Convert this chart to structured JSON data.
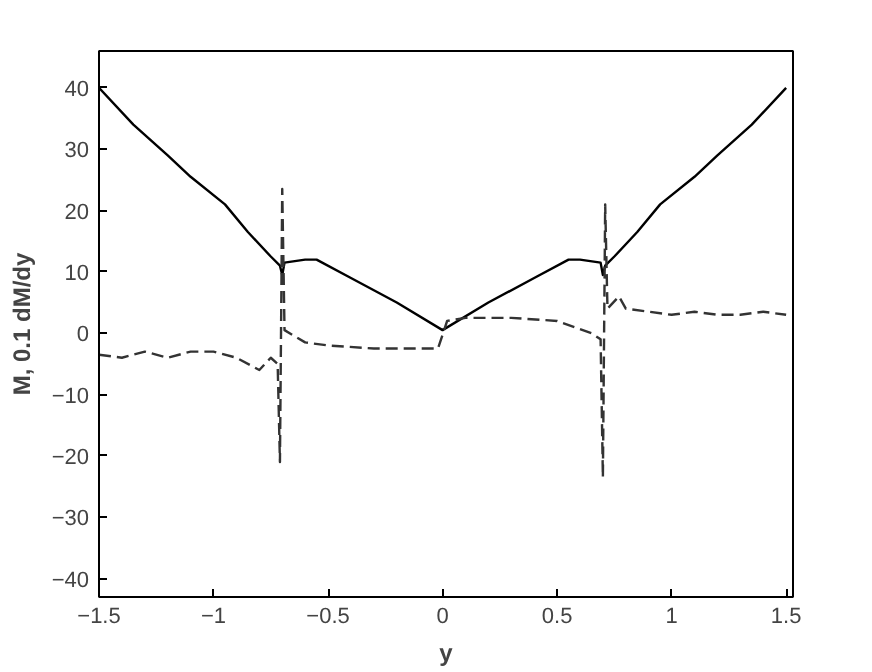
{
  "chart_data": {
    "type": "line",
    "xlabel": "y",
    "ylabel": "M, 0.1 dM/dy",
    "xlim": [
      -1.5,
      1.53
    ],
    "ylim": [
      -43,
      46
    ],
    "xticks": [
      -1.5,
      -1,
      -0.5,
      0,
      0.5,
      1,
      1.5
    ],
    "yticks": [
      -40,
      -30,
      -20,
      -10,
      0,
      10,
      20,
      30,
      40
    ],
    "grid": false,
    "series": [
      {
        "color": "#000000",
        "line_style": "solid",
        "x": [
          -1.5,
          -1.35,
          -1.2,
          -1.1,
          -0.95,
          -0.85,
          -0.75,
          -0.71,
          -0.7,
          -0.69,
          -0.6,
          -0.55,
          -0.4,
          -0.2,
          0,
          0.2,
          0.4,
          0.55,
          0.6,
          0.69,
          0.7,
          0.71,
          0.75,
          0.85,
          0.95,
          1.1,
          1.2,
          1.35,
          1.5
        ],
        "values": [
          40,
          34,
          29,
          25.5,
          21,
          16.5,
          12.5,
          11,
          9.5,
          11.5,
          12,
          12,
          9,
          5,
          0.5,
          5,
          9,
          12,
          12,
          11.5,
          9.5,
          11,
          12.5,
          16.5,
          21,
          25.5,
          29,
          34,
          40
        ]
      },
      {
        "color": "#333333",
        "line_style": "dashed",
        "x": [
          -1.5,
          -1.4,
          -1.3,
          -1.2,
          -1.1,
          -1.0,
          -0.9,
          -0.8,
          -0.75,
          -0.72,
          -0.71,
          -0.7,
          -0.69,
          -0.6,
          -0.5,
          -0.3,
          -0.02,
          0.02,
          0.1,
          0.3,
          0.5,
          0.65,
          0.69,
          0.7,
          0.71,
          0.72,
          0.77,
          0.8,
          0.9,
          1.0,
          1.1,
          1.2,
          1.3,
          1.4,
          1.5
        ],
        "values": [
          -3.5,
          -4,
          -3,
          -4,
          -3,
          -3,
          -4,
          -6,
          -4,
          -5,
          -21,
          23.5,
          0.5,
          -1.5,
          -2,
          -2.5,
          -2.5,
          2,
          2.5,
          2.5,
          2,
          0,
          -1,
          -23.5,
          21,
          4,
          6,
          4,
          3.5,
          3,
          3.5,
          3,
          3,
          3.5,
          3
        ]
      }
    ]
  }
}
